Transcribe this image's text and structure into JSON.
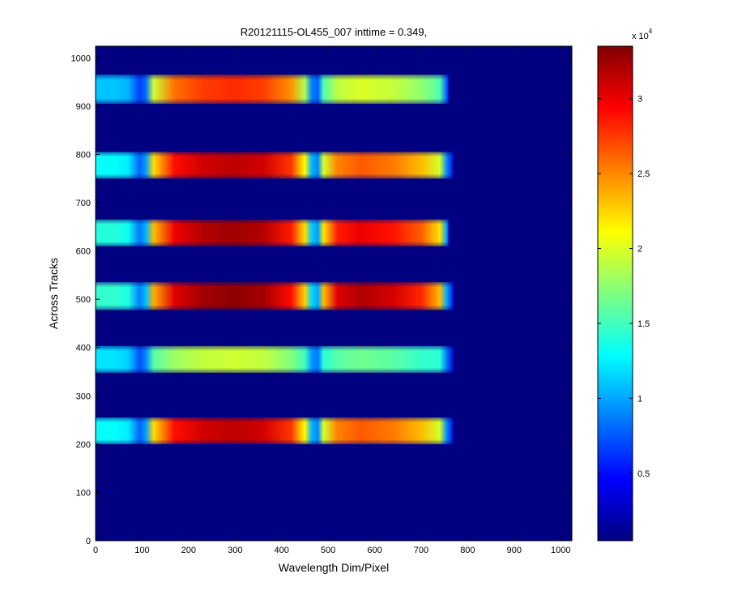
{
  "chart_data": {
    "type": "heatmap",
    "title": "R20121115-OL455_007 inttime = 0.349,",
    "xlabel": "Wavelength Dim/Pixel",
    "ylabel": "Across Tracks",
    "xlim": [
      0,
      1024
    ],
    "ylim": [
      0,
      1024
    ],
    "xticks": [
      0,
      100,
      200,
      300,
      400,
      500,
      600,
      700,
      800,
      900,
      1000
    ],
    "yticks": [
      0,
      100,
      200,
      300,
      400,
      500,
      600,
      700,
      800,
      900,
      1000
    ],
    "colorbar": {
      "colormap": "jet",
      "range": [
        500,
        33500
      ],
      "ticks": [
        0.5,
        1,
        1.5,
        2,
        2.5,
        3
      ],
      "multiplier_label": "x 10",
      "multiplier_exponent": "4"
    },
    "background_value": 500,
    "bands": [
      {
        "y_range": [
          200,
          255
        ],
        "x_range": [
          0,
          770
        ],
        "edge_value": 13000,
        "left_peak": 31500,
        "right_peak": 26500
      },
      {
        "y_range": [
          348,
          403
        ],
        "x_range": [
          0,
          770
        ],
        "edge_value": 12000,
        "left_peak": 19500,
        "right_peak": 16500
      },
      {
        "y_range": [
          478,
          535
        ],
        "x_range": [
          0,
          770
        ],
        "edge_value": 14500,
        "left_peak": 33000,
        "right_peak": 32000
      },
      {
        "y_range": [
          610,
          665
        ],
        "x_range": [
          0,
          760
        ],
        "edge_value": 14000,
        "left_peak": 32500,
        "right_peak": 30000
      },
      {
        "y_range": [
          750,
          805
        ],
        "x_range": [
          0,
          770
        ],
        "edge_value": 13000,
        "left_peak": 31500,
        "right_peak": 26500
      },
      {
        "y_range": [
          905,
          965
        ],
        "x_range": [
          0,
          760
        ],
        "edge_value": 11000,
        "left_peak": 28000,
        "right_peak": 20000
      }
    ]
  }
}
